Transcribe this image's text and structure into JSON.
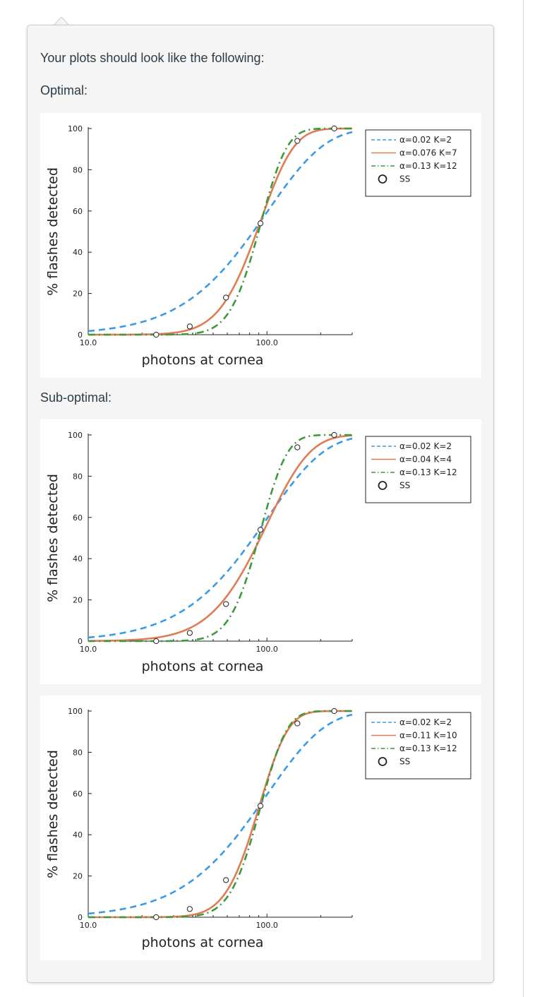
{
  "intro_text": "Your plots should look like the following:",
  "section_optimal": "Optimal:",
  "section_suboptimal": "Sub-optimal:",
  "colors": {
    "blue": "#3b9ae6",
    "orange": "#e07b54",
    "green": "#3c9a3c",
    "marker_edge": "#222222"
  },
  "chart_data": [
    {
      "type": "line",
      "xlabel": "photons at cornea",
      "ylabel": "% flashes detected",
      "xscale": "log",
      "xlim": [
        10,
        300
      ],
      "ylim": [
        0,
        100
      ],
      "x_tick_labels": [
        "10.0",
        "100.0"
      ],
      "y_tick_labels": [
        "0",
        "20",
        "40",
        "60",
        "80",
        "100"
      ],
      "legend_position": "top-right",
      "series": [
        {
          "label": "α=0.02 K=2",
          "alpha": 0.02,
          "K": 2,
          "style": "dashed",
          "color": "#3b9ae6"
        },
        {
          "label": "α=0.076 K=7",
          "alpha": 0.076,
          "K": 7,
          "style": "solid",
          "color": "#e07b54"
        },
        {
          "label": "α=0.13 K=12",
          "alpha": 0.13,
          "K": 12,
          "style": "dashdot",
          "color": "#3c9a3c"
        }
      ],
      "scatter": {
        "label": "SS",
        "x": [
          24,
          37,
          59,
          92,
          148,
          238
        ],
        "y": [
          0,
          4,
          18,
          54,
          94,
          100
        ]
      }
    },
    {
      "type": "line",
      "xlabel": "photons at cornea",
      "ylabel": "% flashes detected",
      "xscale": "log",
      "xlim": [
        10,
        300
      ],
      "ylim": [
        0,
        100
      ],
      "x_tick_labels": [
        "10.0",
        "100.0"
      ],
      "y_tick_labels": [
        "0",
        "20",
        "40",
        "60",
        "80",
        "100"
      ],
      "legend_position": "top-right",
      "series": [
        {
          "label": "α=0.02 K=2",
          "alpha": 0.02,
          "K": 2,
          "style": "dashed",
          "color": "#3b9ae6"
        },
        {
          "label": "α=0.04 K=4",
          "alpha": 0.04,
          "K": 4,
          "style": "solid",
          "color": "#e07b54"
        },
        {
          "label": "α=0.13 K=12",
          "alpha": 0.13,
          "K": 12,
          "style": "dashdot",
          "color": "#3c9a3c"
        }
      ],
      "scatter": {
        "label": "SS",
        "x": [
          24,
          37,
          59,
          92,
          148,
          238
        ],
        "y": [
          0,
          4,
          18,
          54,
          94,
          100
        ]
      }
    },
    {
      "type": "line",
      "xlabel": "photons at cornea",
      "ylabel": "% flashes detected",
      "xscale": "log",
      "xlim": [
        10,
        300
      ],
      "ylim": [
        0,
        100
      ],
      "x_tick_labels": [
        "10.0",
        "100.0"
      ],
      "y_tick_labels": [
        "0",
        "20",
        "40",
        "60",
        "80",
        "100"
      ],
      "legend_position": "top-right",
      "series": [
        {
          "label": "α=0.02 K=2",
          "alpha": 0.02,
          "K": 2,
          "style": "dashed",
          "color": "#3b9ae6"
        },
        {
          "label": "α=0.11 K=10",
          "alpha": 0.11,
          "K": 10,
          "style": "solid",
          "color": "#e07b54"
        },
        {
          "label": "α=0.13 K=12",
          "alpha": 0.13,
          "K": 12,
          "style": "dashdot",
          "color": "#3c9a3c"
        }
      ],
      "scatter": {
        "label": "SS",
        "x": [
          24,
          37,
          59,
          92,
          148,
          238
        ],
        "y": [
          0,
          4,
          18,
          54,
          94,
          100
        ]
      }
    }
  ]
}
